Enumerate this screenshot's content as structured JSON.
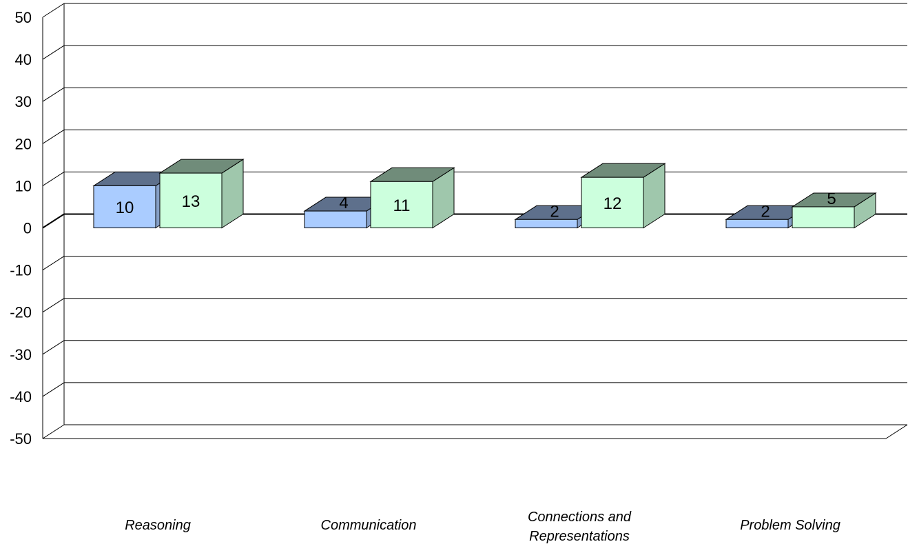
{
  "chart_data": {
    "type": "bar",
    "categories": [
      "Reasoning",
      "Communication",
      "Connections and Representations",
      "Problem Solving"
    ],
    "category_lines": [
      [
        "Reasoning"
      ],
      [
        "Communication"
      ],
      [
        "Connections and",
        "Representations"
      ],
      [
        "Problem Solving"
      ]
    ],
    "series": [
      {
        "values": [
          10,
          4,
          2,
          2
        ],
        "color": "#aaccff"
      },
      {
        "values": [
          13,
          11,
          12,
          5
        ],
        "color": "#ccffdd"
      }
    ],
    "ylim": [
      -50,
      50
    ],
    "yticks": [
      "50",
      "40",
      "30",
      "20",
      "10",
      "0",
      "-10",
      "-20",
      "-30",
      "-40",
      "-50"
    ],
    "grid": true,
    "style": "3d"
  }
}
